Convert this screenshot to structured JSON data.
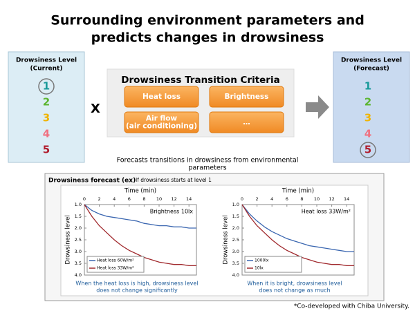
{
  "title": [
    "Surrounding environment parameters and",
    "predicts changes in drowsiness"
  ],
  "current": {
    "heading": [
      "Drowsiness Level",
      "(Current)"
    ],
    "levels": [
      "1",
      "2",
      "3",
      "4",
      "5"
    ],
    "colors": [
      "#1a9a9a",
      "#5cb531",
      "#f0b400",
      "#f07080",
      "#b01c2c"
    ]
  },
  "operator": "X",
  "criteria": {
    "title": "Drowsiness Transition Criteria",
    "items": [
      [
        "Heat loss"
      ],
      [
        "Brightness"
      ],
      [
        "Air flow",
        "(air conditioning)"
      ],
      [
        "…"
      ]
    ]
  },
  "forecast_level": {
    "heading": [
      "Drowsiness Level",
      "(Forecast)"
    ],
    "levels": [
      "1",
      "2",
      "3",
      "4",
      "5"
    ],
    "colors": [
      "#1a9a9a",
      "#5cb531",
      "#f0b400",
      "#f07080",
      "#b01c2c"
    ]
  },
  "caption": [
    "Forecasts transitions in drowsiness from environmental",
    "parameters"
  ],
  "forecast": {
    "title": "Drowsiness forecast (ex)",
    "subtitle": "If drowsiness starts at level 1",
    "charts": [
      {
        "type": "line",
        "x_label": "Time (min)",
        "y_label": "Drowsiness level",
        "annotation": "Brightness 10lx",
        "x": [
          0,
          1,
          2,
          3,
          4,
          5,
          6,
          7,
          8,
          9,
          10,
          11,
          12,
          13,
          14,
          15
        ],
        "xlim": [
          0,
          15
        ],
        "xticks": [
          0,
          2,
          4,
          6,
          8,
          10,
          12,
          14
        ],
        "ylim": [
          1,
          4
        ],
        "yticks": [
          {
            "value": 1,
            "label": "1.0"
          },
          {
            "value": 1.5,
            "label": "1.5"
          },
          {
            "value": 2,
            "label": "2.0"
          },
          {
            "value": 2.5,
            "label": "2.5"
          },
          {
            "value": 3,
            "label": "3.0"
          },
          {
            "value": 3.5,
            "label": "3.5"
          },
          {
            "value": 4,
            "label": "4.0"
          }
        ],
        "y_inverted": true,
        "series": [
          {
            "name": "Heat loss 60W/m²",
            "color": "#3a66b0",
            "values": [
              1.0,
              1.25,
              1.4,
              1.5,
              1.55,
              1.6,
              1.65,
              1.7,
              1.8,
              1.85,
              1.9,
              1.9,
              1.95,
              1.95,
              2.0,
              2.0
            ]
          },
          {
            "name": "Heat loss 33W/m²",
            "color": "#a0282c",
            "values": [
              1.0,
              1.5,
              1.9,
              2.2,
              2.5,
              2.75,
              2.95,
              3.1,
              3.25,
              3.35,
              3.45,
              3.5,
              3.55,
              3.55,
              3.6,
              3.6
            ]
          }
        ],
        "caption": [
          "When the heat loss is high, drowsiness level",
          "does not change significantly"
        ]
      },
      {
        "type": "line",
        "x_label": "Time (min)",
        "y_label": "Drowsiness level",
        "annotation": "Heat loss 33W/m²",
        "x": [
          0,
          1,
          2,
          3,
          4,
          5,
          6,
          7,
          8,
          9,
          10,
          11,
          12,
          13,
          14,
          15
        ],
        "xlim": [
          0,
          15
        ],
        "xticks": [
          0,
          2,
          4,
          6,
          8,
          10,
          12,
          14
        ],
        "ylim": [
          1,
          4
        ],
        "yticks": [
          {
            "value": 1,
            "label": "1.0"
          },
          {
            "value": 1.5,
            "label": "1.5"
          },
          {
            "value": 2,
            "label": "2.0"
          },
          {
            "value": 2.5,
            "label": "2.5"
          },
          {
            "value": 3,
            "label": "3.0"
          },
          {
            "value": 3.5,
            "label": "3.5"
          },
          {
            "value": 4,
            "label": "4.0"
          }
        ],
        "y_inverted": true,
        "series": [
          {
            "name": "1000lx",
            "color": "#3a66b0",
            "values": [
              1.0,
              1.4,
              1.7,
              1.95,
              2.15,
              2.3,
              2.45,
              2.55,
              2.65,
              2.75,
              2.8,
              2.85,
              2.9,
              2.95,
              3.0,
              3.0
            ]
          },
          {
            "name": "10lx",
            "color": "#a0282c",
            "values": [
              1.0,
              1.5,
              1.9,
              2.2,
              2.5,
              2.75,
              2.95,
              3.1,
              3.25,
              3.35,
              3.45,
              3.5,
              3.55,
              3.55,
              3.6,
              3.6
            ]
          }
        ],
        "caption": [
          "When it is bright, drowsiness level",
          "does not change as much"
        ]
      }
    ]
  },
  "footnote": "*Co-developed with Chiba University."
}
